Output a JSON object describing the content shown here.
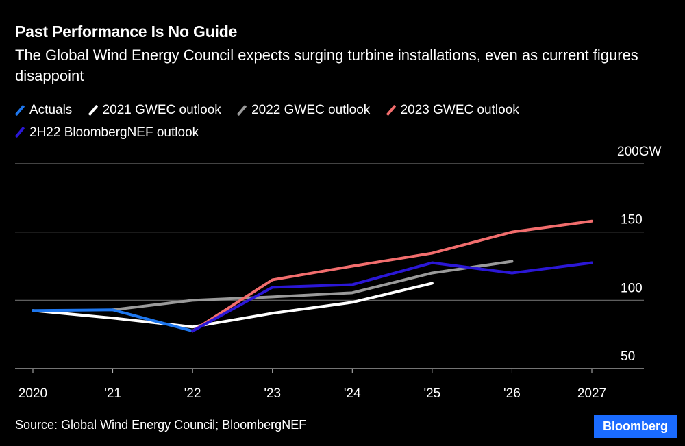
{
  "header": {
    "title": "Past Performance Is No Guide",
    "subtitle": "The Global Wind Energy Council expects surging turbine installations, even as current figures disappoint"
  },
  "footer": {
    "source": "Source: Global Wind Energy Council; BloombergNEF",
    "brand": "Bloomberg"
  },
  "chart_data": {
    "type": "line",
    "title": "Past Performance Is No Guide",
    "subtitle": "The Global Wind Energy Council expects surging turbine installations, even as current figures disappoint",
    "xlabel": "",
    "ylabel": "GW",
    "x": [
      2020,
      2021,
      2022,
      2023,
      2024,
      2025,
      2026,
      2027
    ],
    "x_tick_labels": [
      "2020",
      "'21",
      "'22",
      "'23",
      "'24",
      "'25",
      "'26",
      "2027"
    ],
    "y_ticks": [
      50,
      100,
      150,
      200
    ],
    "y_tick_labels": [
      "50",
      "100",
      "150",
      "200GW"
    ],
    "ylim": [
      50,
      200
    ],
    "grid": true,
    "legend_position": "top-left",
    "series": [
      {
        "name": "Actuals",
        "color": "#1e77ee",
        "values": [
          92.5,
          93,
          77.5,
          null,
          null,
          null,
          null,
          null
        ]
      },
      {
        "name": "2021 GWEC outlook",
        "color": "#ffffff",
        "values": [
          92.5,
          87,
          80.5,
          90.5,
          98.5,
          112.5,
          null,
          null
        ]
      },
      {
        "name": "2022 GWEC outlook",
        "color": "#9a9a9a",
        "values": [
          null,
          93,
          100,
          102.5,
          105.5,
          120,
          128.5,
          null
        ]
      },
      {
        "name": "2023 GWEC outlook",
        "color": "#f26d6d",
        "values": [
          null,
          null,
          77.5,
          115,
          125,
          134.5,
          150,
          158
        ]
      },
      {
        "name": "2H22 BloombergNEF outlook",
        "color": "#2b17d6",
        "values": [
          null,
          null,
          77.5,
          109.5,
          111.5,
          127.5,
          120,
          127.5
        ]
      }
    ]
  }
}
